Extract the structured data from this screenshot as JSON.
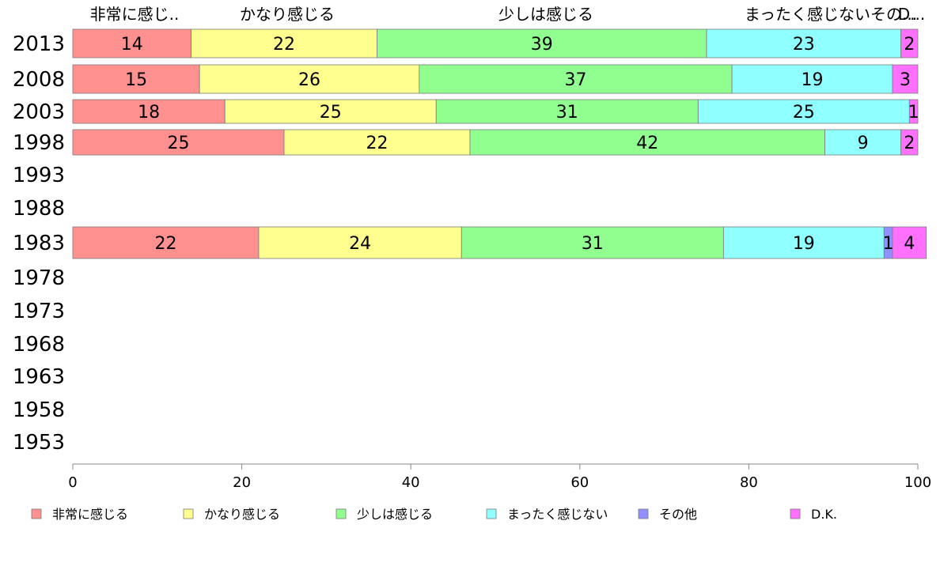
{
  "chart_data": {
    "type": "bar",
    "orientation": "horizontal",
    "stacked": true,
    "categories": [
      "2013",
      "2008",
      "2003",
      "1998",
      "1993",
      "1988",
      "1983",
      "1978",
      "1973",
      "1968",
      "1963",
      "1958",
      "1953"
    ],
    "series": [
      {
        "name": "非常に感じる",
        "color": "#ff9090",
        "values": [
          14,
          15,
          18,
          25,
          null,
          null,
          22,
          null,
          null,
          null,
          null,
          null,
          null
        ]
      },
      {
        "name": "かなり感じる",
        "color": "#ffff90",
        "values": [
          22,
          26,
          25,
          22,
          null,
          null,
          24,
          null,
          null,
          null,
          null,
          null,
          null
        ]
      },
      {
        "name": "少しは感じる",
        "color": "#90ff90",
        "values": [
          39,
          37,
          31,
          42,
          null,
          null,
          31,
          null,
          null,
          null,
          null,
          null,
          null
        ]
      },
      {
        "name": "まったく感じない",
        "color": "#90ffff",
        "values": [
          23,
          19,
          25,
          9,
          null,
          null,
          19,
          null,
          null,
          null,
          null,
          null,
          null
        ]
      },
      {
        "name": "その他",
        "color": "#9090ff",
        "values": [
          0,
          0,
          0,
          0,
          null,
          null,
          1,
          null,
          null,
          null,
          null,
          null,
          null
        ]
      },
      {
        "name": "D.K.",
        "color": "#ff70ff",
        "values": [
          2,
          3,
          1,
          2,
          null,
          null,
          4,
          null,
          null,
          null,
          null,
          null,
          null
        ]
      }
    ],
    "top_labels": [
      "非常に感じ..",
      "かなり感じる",
      "少しは感じる",
      "まったく感じないその...",
      "D..."
    ],
    "xlim": [
      0,
      100
    ],
    "xticks": [
      "0",
      "20",
      "40",
      "60",
      "80",
      "100"
    ],
    "grid": false,
    "legend_position": "bottom"
  }
}
